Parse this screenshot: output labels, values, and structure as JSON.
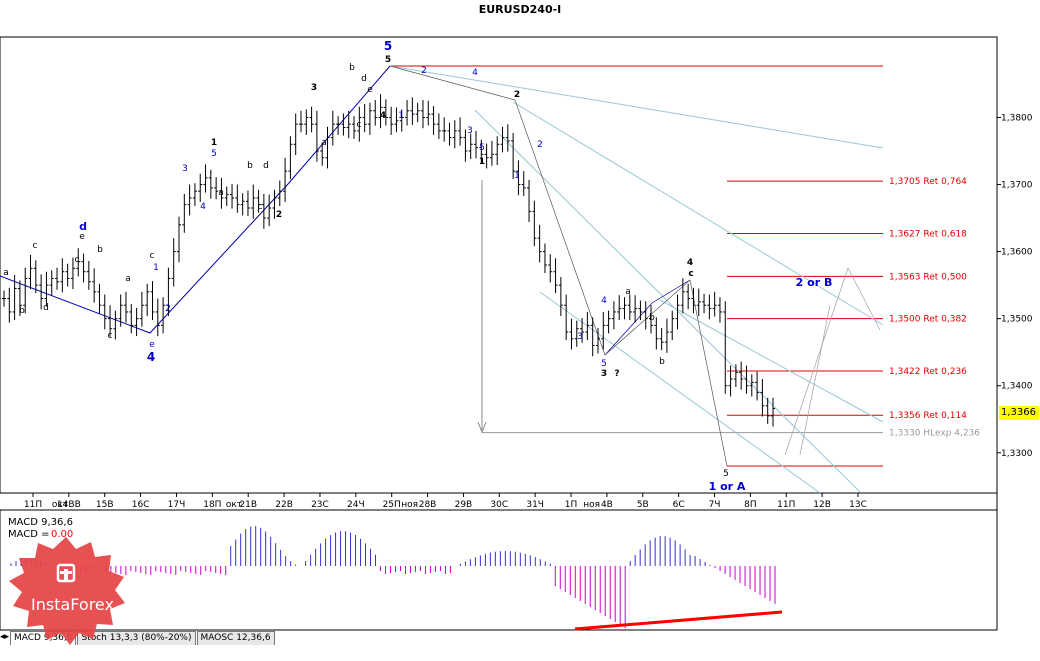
{
  "title": "EURUSD240-I",
  "current_price": "1,3366",
  "colors": {
    "wave_blue": "#0000cc",
    "fib_red": "#e00000",
    "channel": "#9bc6d6",
    "bull": "#000000",
    "macd_pos": "#3333cc",
    "macd_neg": "#cc00cc",
    "divergence": "#ff0000"
  },
  "tabs": {
    "macd": "MACD 9,36,6",
    "stoch": "Stoch 13,3,3 (80%-20%)",
    "maosc": "MAOSC 12,36,6"
  },
  "macd_labels": {
    "line1": "MACD 9,36,6",
    "line2_prefix": "MACD =",
    "line2_value": "0.00"
  },
  "logo_text": "InstaForex",
  "chart_data": {
    "type": "candlestick",
    "symbol": "EURUSD",
    "timeframe": "H4",
    "ylim": [
      1.324,
      1.392
    ],
    "y_ticks": [
      "1,3300",
      "1,3400",
      "1,3500",
      "1,3600",
      "1,3700",
      "1,3800"
    ],
    "x_tick_labels": [
      "11П",
      "14ВВ",
      "15В",
      "16С",
      "17Ч",
      "18П",
      "21В",
      "22В",
      "23С",
      "24Ч",
      "25П",
      "28В",
      "29В",
      "30С",
      "31Ч",
      "1П",
      "4В",
      "5В",
      "6С",
      "7Ч",
      "8П",
      "11П",
      "12В",
      "13С"
    ],
    "x_axis_month_labels": [
      "окт",
      "окт",
      "ноя",
      "ноя"
    ],
    "closes": [
      1.353,
      1.351,
      1.3545,
      1.352,
      1.356,
      1.3575,
      1.355,
      1.353,
      1.355,
      1.356,
      1.3555,
      1.357,
      1.356,
      1.3575,
      1.3585,
      1.357,
      1.3555,
      1.354,
      1.352,
      1.35,
      1.3485,
      1.35,
      1.352,
      1.351,
      1.349,
      1.35,
      1.352,
      1.354,
      1.351,
      1.349,
      1.352,
      1.356,
      1.36,
      1.364,
      1.367,
      1.368,
      1.369,
      1.37,
      1.371,
      1.3695,
      1.369,
      1.368,
      1.3685,
      1.368,
      1.367,
      1.3675,
      1.3665,
      1.368,
      1.367,
      1.365,
      1.3665,
      1.368,
      1.369,
      1.372,
      1.376,
      1.379,
      1.379,
      1.38,
      1.379,
      1.375,
      1.374,
      1.377,
      1.379,
      1.379,
      1.3785,
      1.379,
      1.378,
      1.38,
      1.379,
      1.381,
      1.38,
      1.3815,
      1.38,
      1.379,
      1.3795,
      1.38,
      1.381,
      1.3805,
      1.381,
      1.38,
      1.3805,
      1.379,
      1.378,
      1.378,
      1.377,
      1.378,
      1.377,
      1.375,
      1.376,
      1.3755,
      1.3745,
      1.374,
      1.3745,
      1.376,
      1.377,
      1.3765,
      1.372,
      1.37,
      1.3695,
      1.366,
      1.362,
      1.36,
      1.358,
      1.357,
      1.355,
      1.352,
      1.348,
      1.347,
      1.3485,
      1.348,
      1.349,
      1.346,
      1.347,
      1.349,
      1.35,
      1.351,
      1.3515,
      1.352,
      1.351,
      1.3515,
      1.351,
      1.35,
      1.349,
      1.347,
      1.3465,
      1.348,
      1.35,
      1.352,
      1.354,
      1.353,
      1.352,
      1.3525,
      1.352,
      1.3515,
      1.352,
      1.351,
      1.34,
      1.341,
      1.342,
      1.341,
      1.34,
      1.3405,
      1.339,
      1.337,
      1.3355,
      1.3366
    ],
    "fib_levels": [
      {
        "price": 1.3705,
        "label": "1,3705 Ret 0,764"
      },
      {
        "price": 1.3627,
        "label": "1,3627 Ret 0,618"
      },
      {
        "price": 1.3563,
        "label": "1,3563 Ret 0,500"
      },
      {
        "price": 1.35,
        "label": "1,3500 Ret 0,382"
      },
      {
        "price": 1.3422,
        "label": "1,3422 Ret 0,236"
      },
      {
        "price": 1.3356,
        "label": "1,3356 Ret 0,114"
      }
    ],
    "grey_level": {
      "price": 1.333,
      "label": "1,3330 HLexp 4,236"
    },
    "wave_labels": [
      "1",
      "2",
      "3",
      "4",
      "5",
      "a",
      "b",
      "c",
      "d",
      "e",
      "1 or A",
      "2 or B",
      "?"
    ],
    "projection_label": "2 or B",
    "target_label": "1 or A"
  }
}
